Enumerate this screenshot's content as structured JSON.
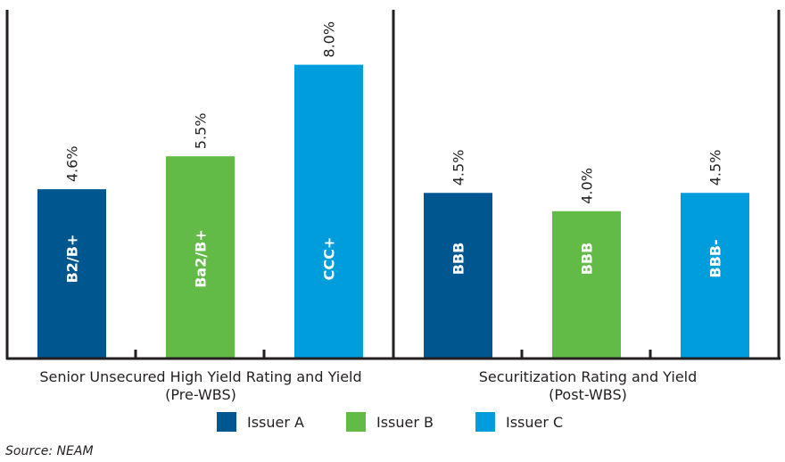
{
  "chart_data": {
    "type": "bar",
    "ylim": [
      0,
      9.5
    ],
    "grid": false,
    "legend_position": "bottom",
    "groups": [
      {
        "label_line1": "Senior Unsecured High Yield Rating and Yield",
        "label_line2": "(Pre-WBS)",
        "bars": [
          {
            "issuer": "Issuer A",
            "value": 4.6,
            "value_label": "4.6%",
            "rating": "B2/B+"
          },
          {
            "issuer": "Issuer B",
            "value": 5.5,
            "value_label": "5.5%",
            "rating": "Ba2/B+"
          },
          {
            "issuer": "Issuer C",
            "value": 8.0,
            "value_label": "8.0%",
            "rating": "CCC+"
          }
        ]
      },
      {
        "label_line1": "Securitization Rating and Yield",
        "label_line2": "(Post-WBS)",
        "bars": [
          {
            "issuer": "Issuer A",
            "value": 4.5,
            "value_label": "4.5%",
            "rating": "BBB"
          },
          {
            "issuer": "Issuer B",
            "value": 4.0,
            "value_label": "4.0%",
            "rating": "BBB"
          },
          {
            "issuer": "Issuer C",
            "value": 4.5,
            "value_label": "4.5%",
            "rating": "BBB-"
          }
        ]
      }
    ],
    "legend": [
      {
        "name": "Issuer A",
        "color": "#00568f"
      },
      {
        "name": "Issuer B",
        "color": "#62bb47"
      },
      {
        "name": "Issuer C",
        "color": "#009ddc"
      }
    ]
  },
  "source": "Source: NEAM"
}
